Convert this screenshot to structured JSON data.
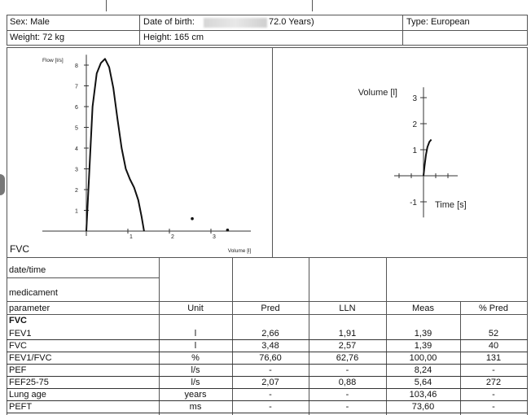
{
  "patient": {
    "sex": "Sex: Male",
    "weight": "Weight: 72 kg",
    "dob_label": "Date of birth:",
    "dob_age": "72.0 Years)",
    "height": "Height: 165 cm",
    "type": "Type: European"
  },
  "flow_volume_chart": {
    "label": "FVC",
    "ylabel": "Flow [l/s]",
    "xlabel": "Volume [l]"
  },
  "volume_time_chart": {
    "ylabel": "Volume [l]",
    "xlabel": "Time [s]"
  },
  "table": {
    "date_label": "date/time",
    "medicament_label": "medicament",
    "columns": [
      "parameter",
      "Unit",
      "Pred",
      "LLN",
      "Meas",
      "% Pred"
    ],
    "section": "FVC",
    "rows": [
      {
        "parameter": "FEV1",
        "unit": "l",
        "pred": "2,66",
        "lln": "1,91",
        "meas": "1,39",
        "pct": "52"
      },
      {
        "parameter": "FVC",
        "unit": "l",
        "pred": "3,48",
        "lln": "2,57",
        "meas": "1,39",
        "pct": "40"
      },
      {
        "parameter": "FEV1/FVC",
        "unit": "%",
        "pred": "76,60",
        "lln": "62,76",
        "meas": "100,00",
        "pct": "131"
      },
      {
        "parameter": "PEF",
        "unit": "l/s",
        "pred": "-",
        "lln": "-",
        "meas": "8,24",
        "pct": "-"
      },
      {
        "parameter": "FEF25-75",
        "unit": "l/s",
        "pred": "2,07",
        "lln": "0,88",
        "meas": "5,64",
        "pct": "272"
      },
      {
        "parameter": "Lung age",
        "unit": "years",
        "pred": "-",
        "lln": "-",
        "meas": "103,46",
        "pct": "-"
      },
      {
        "parameter": "PEFT",
        "unit": "ms",
        "pred": "-",
        "lln": "-",
        "meas": "73,60",
        "pct": "-"
      }
    ]
  },
  "chart_data": [
    {
      "type": "line",
      "ylabel": "Flow [l/s]",
      "xlabel": "Volume [l]",
      "xlim": [
        -0.5,
        3.5
      ],
      "ylim": [
        -1,
        8.5
      ],
      "x_ticks": [
        "1",
        "2",
        "3"
      ],
      "y_ticks": [
        "1",
        "2",
        "3",
        "4",
        "5",
        "6",
        "7",
        "8"
      ],
      "series": [
        {
          "x": [
            0,
            0.08,
            0.15,
            0.25,
            0.35,
            0.45,
            0.55,
            0.65,
            0.75,
            0.85,
            0.95,
            1.05,
            1.15,
            1.25,
            1.33,
            1.39
          ],
          "y": [
            0,
            3.2,
            6.0,
            7.6,
            8.1,
            8.3,
            7.9,
            6.9,
            5.4,
            4.0,
            3.0,
            2.5,
            2.1,
            1.5,
            0.7,
            0.0
          ]
        }
      ],
      "points": [
        {
          "x": 2.55,
          "y": 0.6
        },
        {
          "x": 3.4,
          "y": 0.05
        }
      ]
    },
    {
      "type": "line",
      "ylabel": "Volume [l]",
      "xlabel": "Time [s]",
      "xlim": [
        -0.6,
        0.9
      ],
      "ylim": [
        -1.5,
        3.5
      ],
      "y_ticks": [
        "3",
        "2",
        "1",
        "-1"
      ],
      "series": [
        {
          "x": [
            0,
            0.02,
            0.05,
            0.08,
            0.12,
            0.16
          ],
          "y": [
            0,
            0.35,
            0.8,
            1.1,
            1.3,
            1.39
          ]
        }
      ]
    }
  ]
}
